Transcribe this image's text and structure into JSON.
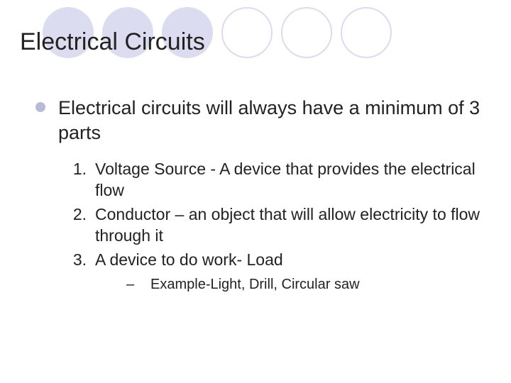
{
  "colors": {
    "circle_fill": "#dcdcf0",
    "circle_outline": "#dcdcf0",
    "bullet": "#b9b9d8",
    "text": "#222222",
    "background": "#ffffff"
  },
  "decoration": {
    "circle_count": 6,
    "filled_indices": [
      0,
      1,
      2
    ],
    "outline_indices": [
      3,
      4,
      5
    ]
  },
  "title": "Electrical Circuits",
  "main_bullet": "Electrical circuits will always have a minimum of 3 parts",
  "items": [
    {
      "num": "1.",
      "text": "Voltage Source - A device that provides the electrical flow"
    },
    {
      "num": "2.",
      "text": "Conductor – an object that will allow electricity to flow through it"
    },
    {
      "num": "3.",
      "text": "A device to do work- Load"
    }
  ],
  "sub_item": {
    "dash": "–",
    "text": "Example-Light, Drill, Circular saw"
  },
  "typography": {
    "title_fontsize": 34,
    "main_fontsize": 27,
    "item_fontsize": 23,
    "sub_fontsize": 20
  }
}
